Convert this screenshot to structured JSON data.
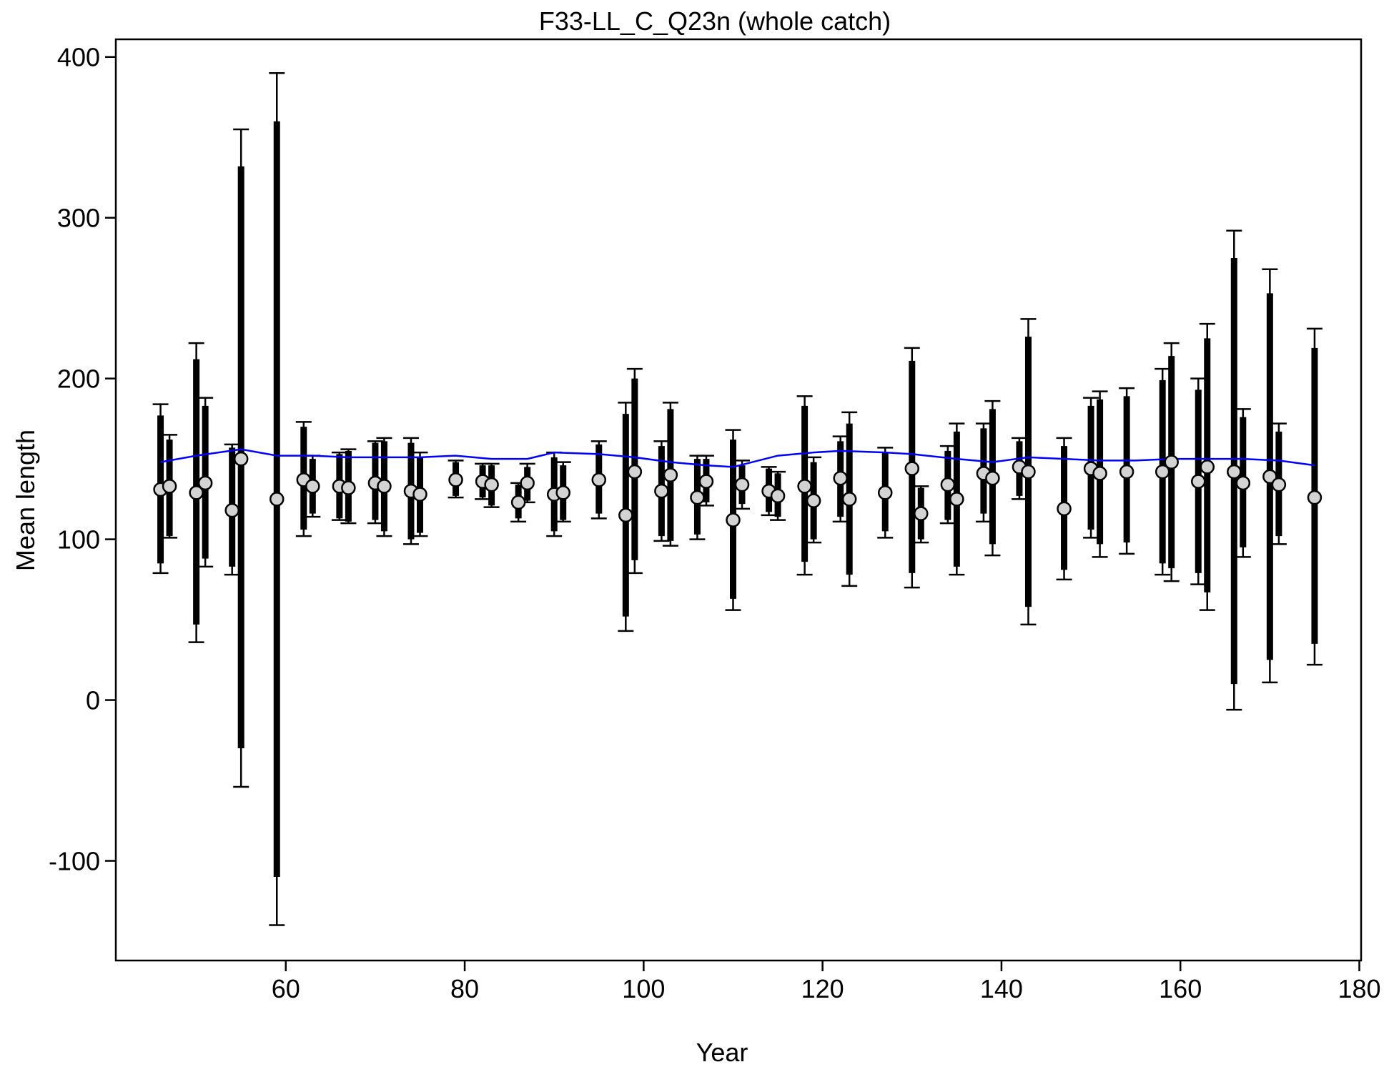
{
  "chart_data": {
    "type": "errorbar",
    "title": "F33-LL_C_Q23n (whole catch)",
    "x_label": "Year",
    "y_label": "Mean length",
    "xlim": [
      41,
      180.2
    ],
    "ylim": [
      -162,
      411
    ],
    "xticks": [
      60,
      80,
      100,
      120,
      140,
      160,
      180
    ],
    "yticks": [
      -100,
      0,
      100,
      200,
      300,
      400
    ],
    "point_color": "#d3d3d3",
    "bar_color": "#000000",
    "line_color": "#0000ff",
    "x": [
      46,
      47,
      50,
      51,
      54,
      55,
      59,
      62,
      63,
      66,
      67,
      70,
      71,
      74,
      75,
      79,
      82,
      83,
      86,
      87,
      90,
      91,
      95,
      98,
      99,
      102,
      103,
      106,
      107,
      110,
      111,
      114,
      115,
      118,
      119,
      122,
      123,
      127,
      130,
      131,
      134,
      135,
      138,
      139,
      142,
      143,
      147,
      150,
      151,
      154,
      158,
      159,
      162,
      163,
      166,
      167,
      170,
      171,
      175
    ],
    "mean": [
      131,
      133,
      129,
      135,
      118,
      150,
      125,
      137,
      133,
      133,
      132,
      135,
      133,
      130,
      128,
      137,
      136,
      134,
      123,
      135,
      128,
      129,
      137,
      115,
      142,
      130,
      140,
      126,
      136,
      112,
      134,
      130,
      127,
      133,
      124,
      138,
      125,
      129,
      144,
      116,
      134,
      125,
      141,
      138,
      145,
      142,
      119,
      144,
      141,
      142,
      142,
      148,
      136,
      145,
      142,
      135,
      139,
      134,
      126
    ],
    "inner_low": [
      85,
      102,
      47,
      88,
      83,
      -30,
      -110,
      106,
      116,
      113,
      111,
      112,
      105,
      100,
      104,
      127,
      126,
      121,
      113,
      124,
      105,
      112,
      116,
      52,
      87,
      102,
      99,
      103,
      123,
      63,
      122,
      117,
      114,
      86,
      100,
      114,
      78,
      105,
      79,
      100,
      112,
      83,
      116,
      97,
      127,
      58,
      81,
      106,
      97,
      98,
      85,
      82,
      79,
      67,
      10,
      95,
      25,
      102,
      35
    ],
    "inner_high": [
      177,
      162,
      212,
      183,
      157,
      332,
      360,
      170,
      150,
      153,
      155,
      160,
      161,
      160,
      151,
      148,
      146,
      146,
      134,
      145,
      151,
      146,
      159,
      178,
      200,
      158,
      181,
      150,
      150,
      162,
      146,
      144,
      141,
      183,
      148,
      161,
      172,
      154,
      211,
      132,
      155,
      167,
      169,
      181,
      161,
      226,
      158,
      183,
      187,
      189,
      199,
      214,
      193,
      225,
      275,
      176,
      253,
      167,
      219
    ],
    "outer_low": [
      79,
      101,
      36,
      83,
      78,
      -54,
      -140,
      102,
      114,
      112,
      110,
      110,
      102,
      97,
      102,
      126,
      125,
      120,
      111,
      123,
      102,
      111,
      113,
      43,
      79,
      99,
      96,
      100,
      121,
      56,
      119,
      115,
      112,
      78,
      98,
      111,
      71,
      101,
      70,
      98,
      110,
      78,
      111,
      90,
      125,
      47,
      75,
      101,
      89,
      91,
      78,
      74,
      72,
      56,
      -6,
      89,
      11,
      97,
      22
    ],
    "outer_high": [
      184,
      165,
      222,
      188,
      159,
      355,
      390,
      173,
      152,
      154,
      156,
      161,
      163,
      163,
      154,
      149,
      147,
      147,
      135,
      147,
      154,
      148,
      161,
      185,
      206,
      161,
      185,
      152,
      152,
      168,
      149,
      145,
      142,
      189,
      151,
      164,
      179,
      157,
      219,
      133,
      158,
      172,
      172,
      186,
      163,
      237,
      163,
      188,
      192,
      194,
      206,
      222,
      200,
      234,
      292,
      181,
      268,
      172,
      231
    ],
    "line_x": [
      46,
      50,
      55,
      59,
      63,
      67,
      75,
      79,
      83,
      87,
      90,
      95,
      99,
      103,
      107,
      110,
      115,
      119,
      122,
      127,
      130,
      135,
      139,
      143,
      147,
      151,
      155,
      159,
      163,
      167,
      171,
      175
    ],
    "line_values": [
      148,
      152,
      156,
      152,
      152,
      151,
      151,
      152,
      150,
      150,
      154,
      153,
      151,
      148,
      146,
      145,
      152,
      154,
      155,
      154,
      153,
      150,
      148,
      151,
      150,
      149,
      149,
      150,
      150,
      150,
      149,
      146
    ]
  }
}
